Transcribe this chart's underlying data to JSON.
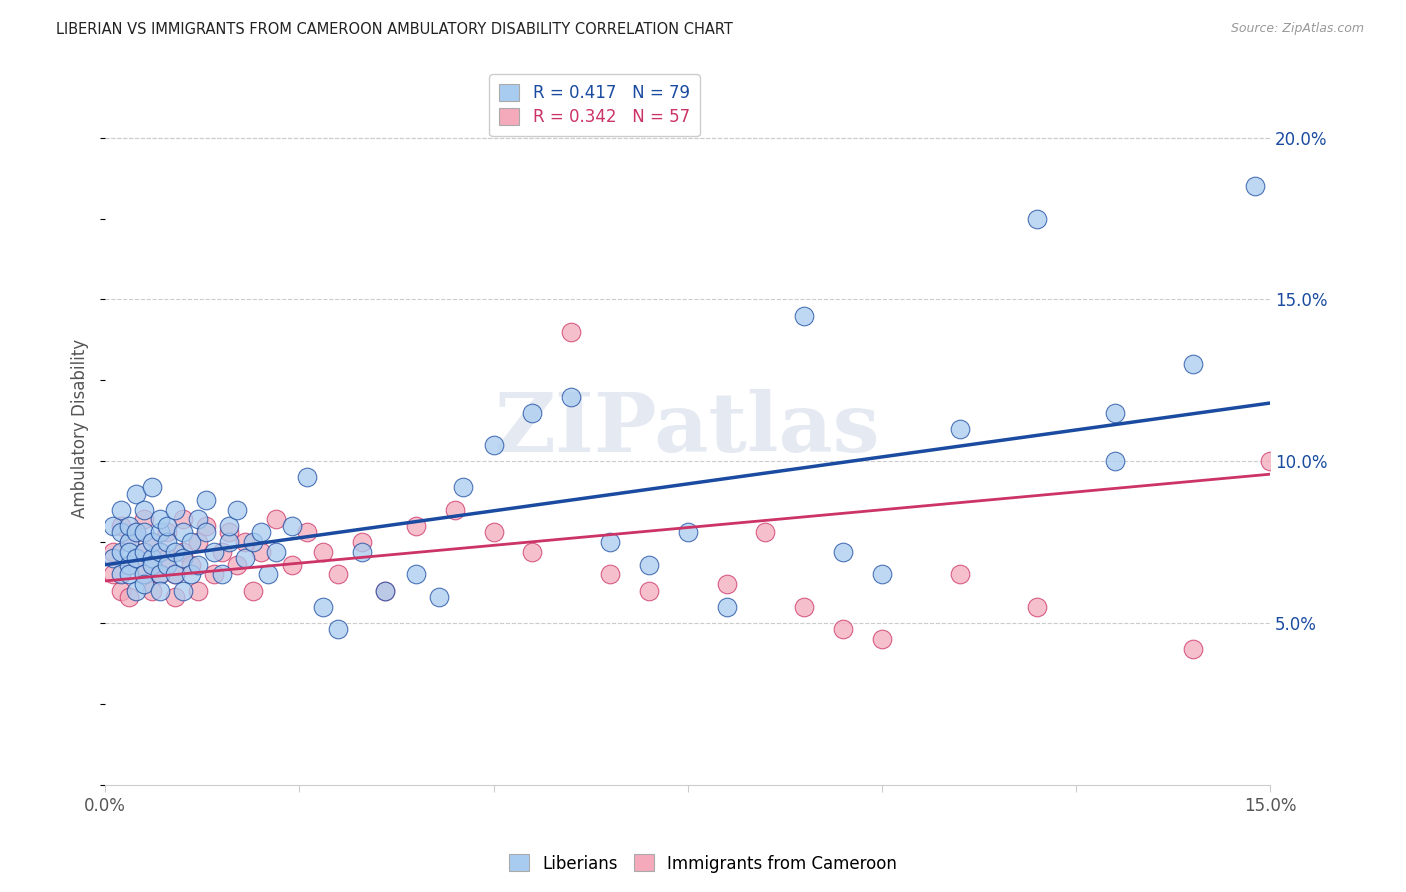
{
  "title": "LIBERIAN VS IMMIGRANTS FROM CAMEROON AMBULATORY DISABILITY CORRELATION CHART",
  "source": "Source: ZipAtlas.com",
  "ylabel": "Ambulatory Disability",
  "xlim": [
    0,
    0.15
  ],
  "ylim": [
    0,
    0.22
  ],
  "xticks": [
    0.0,
    0.025,
    0.05,
    0.075,
    0.1,
    0.125,
    0.15
  ],
  "xtick_labels": [
    "0.0%",
    "",
    "",
    "",
    "",
    "",
    "15.0%"
  ],
  "yticks_right": [
    0.05,
    0.1,
    0.15,
    0.2
  ],
  "legend_labels": [
    "Liberians",
    "Immigrants from Cameroon"
  ],
  "R_liberian": 0.417,
  "N_liberian": 79,
  "R_cameroon": 0.342,
  "N_cameroon": 57,
  "blue_color": "#A8CCF0",
  "pink_color": "#F4AABB",
  "blue_line_color": "#1A4BA0",
  "pink_line_color": "#CC3366",
  "watermark": "ZIPatlas",
  "blue_line_x0": 0.0,
  "blue_line_y0": 0.068,
  "blue_line_x1": 0.15,
  "blue_line_y1": 0.118,
  "pink_line_x0": 0.0,
  "pink_line_y0": 0.063,
  "pink_line_x1": 0.15,
  "pink_line_y1": 0.096,
  "liberian_x": [
    0.001,
    0.001,
    0.002,
    0.002,
    0.002,
    0.002,
    0.003,
    0.003,
    0.003,
    0.003,
    0.003,
    0.004,
    0.004,
    0.004,
    0.004,
    0.005,
    0.005,
    0.005,
    0.005,
    0.005,
    0.006,
    0.006,
    0.006,
    0.006,
    0.007,
    0.007,
    0.007,
    0.007,
    0.007,
    0.008,
    0.008,
    0.008,
    0.009,
    0.009,
    0.009,
    0.01,
    0.01,
    0.01,
    0.011,
    0.011,
    0.012,
    0.012,
    0.013,
    0.013,
    0.014,
    0.015,
    0.016,
    0.016,
    0.017,
    0.018,
    0.019,
    0.02,
    0.021,
    0.022,
    0.024,
    0.026,
    0.028,
    0.03,
    0.033,
    0.036,
    0.04,
    0.043,
    0.046,
    0.05,
    0.055,
    0.06,
    0.065,
    0.07,
    0.075,
    0.08,
    0.09,
    0.095,
    0.1,
    0.11,
    0.12,
    0.13,
    0.13,
    0.14,
    0.148
  ],
  "liberian_y": [
    0.07,
    0.08,
    0.072,
    0.078,
    0.065,
    0.085,
    0.068,
    0.075,
    0.08,
    0.065,
    0.072,
    0.07,
    0.078,
    0.06,
    0.09,
    0.065,
    0.072,
    0.078,
    0.085,
    0.062,
    0.07,
    0.075,
    0.068,
    0.092,
    0.065,
    0.072,
    0.078,
    0.082,
    0.06,
    0.068,
    0.075,
    0.08,
    0.065,
    0.072,
    0.085,
    0.07,
    0.078,
    0.06,
    0.065,
    0.075,
    0.082,
    0.068,
    0.078,
    0.088,
    0.072,
    0.065,
    0.075,
    0.08,
    0.085,
    0.07,
    0.075,
    0.078,
    0.065,
    0.072,
    0.08,
    0.095,
    0.055,
    0.048,
    0.072,
    0.06,
    0.065,
    0.058,
    0.092,
    0.105,
    0.115,
    0.12,
    0.075,
    0.068,
    0.078,
    0.055,
    0.145,
    0.072,
    0.065,
    0.11,
    0.175,
    0.1,
    0.115,
    0.13,
    0.185
  ],
  "cameroon_x": [
    0.001,
    0.001,
    0.002,
    0.002,
    0.003,
    0.003,
    0.003,
    0.004,
    0.004,
    0.005,
    0.005,
    0.005,
    0.006,
    0.006,
    0.006,
    0.007,
    0.007,
    0.008,
    0.008,
    0.009,
    0.009,
    0.01,
    0.01,
    0.011,
    0.012,
    0.012,
    0.013,
    0.014,
    0.015,
    0.016,
    0.017,
    0.018,
    0.019,
    0.02,
    0.022,
    0.024,
    0.026,
    0.028,
    0.03,
    0.033,
    0.036,
    0.04,
    0.045,
    0.05,
    0.055,
    0.06,
    0.065,
    0.07,
    0.08,
    0.085,
    0.09,
    0.095,
    0.1,
    0.11,
    0.12,
    0.14,
    0.15
  ],
  "cameroon_y": [
    0.072,
    0.065,
    0.08,
    0.06,
    0.068,
    0.075,
    0.058,
    0.07,
    0.078,
    0.065,
    0.072,
    0.082,
    0.068,
    0.075,
    0.06,
    0.072,
    0.065,
    0.07,
    0.078,
    0.065,
    0.058,
    0.072,
    0.082,
    0.068,
    0.075,
    0.06,
    0.08,
    0.065,
    0.072,
    0.078,
    0.068,
    0.075,
    0.06,
    0.072,
    0.082,
    0.068,
    0.078,
    0.072,
    0.065,
    0.075,
    0.06,
    0.08,
    0.085,
    0.078,
    0.072,
    0.14,
    0.065,
    0.06,
    0.062,
    0.078,
    0.055,
    0.048,
    0.045,
    0.065,
    0.055,
    0.042,
    0.1
  ]
}
